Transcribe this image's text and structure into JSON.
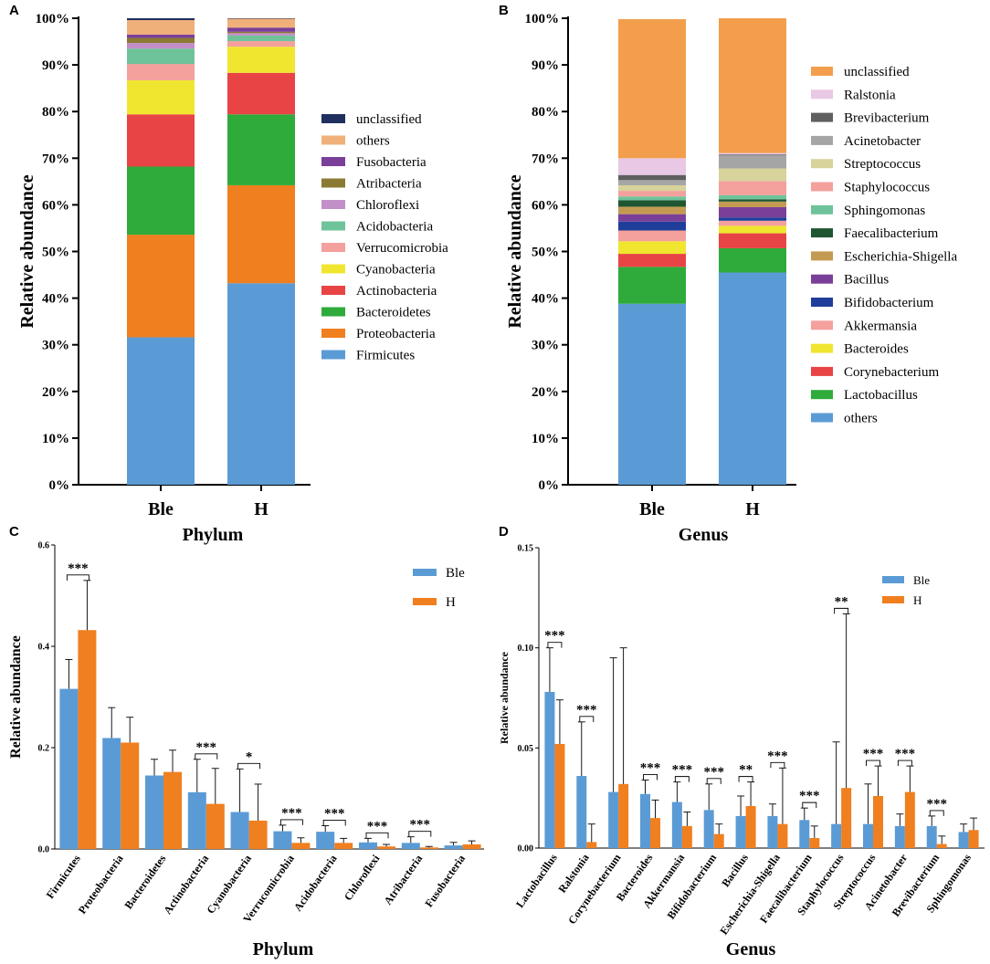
{
  "chart_data": [
    {
      "panel": "A",
      "type": "bar",
      "stacked": true,
      "title": "",
      "xlabel": "Phylum",
      "ylabel": "Relative abundance",
      "yticks": [
        "0%",
        "10%",
        "20%",
        "30%",
        "40%",
        "50%",
        "60%",
        "70%",
        "80%",
        "90%",
        "100%"
      ],
      "ylim": [
        0,
        100
      ],
      "categories": [
        "Ble",
        "H"
      ],
      "series": [
        {
          "name": "Firmicutes",
          "color": "#5b9bd5",
          "values": [
            31.6,
            43.2
          ]
        },
        {
          "name": "Proteobacteria",
          "color": "#f07f1f",
          "values": [
            22.0,
            21.0
          ]
        },
        {
          "name": "Bacteroidetes",
          "color": "#2eab3b",
          "values": [
            14.6,
            15.2
          ]
        },
        {
          "name": "Actinobacteria",
          "color": "#e84445",
          "values": [
            11.2,
            8.9
          ]
        },
        {
          "name": "Cyanobacteria",
          "color": "#f0e630",
          "values": [
            7.3,
            5.6
          ]
        },
        {
          "name": "Verrucomicrobia",
          "color": "#f4a09c",
          "values": [
            3.5,
            1.2
          ]
        },
        {
          "name": "Acidobacteria",
          "color": "#6fc39a",
          "values": [
            3.3,
            1.2
          ]
        },
        {
          "name": "Chloroflexi",
          "color": "#c38fc8",
          "values": [
            1.2,
            0.5
          ]
        },
        {
          "name": "Atribacteria",
          "color": "#8b7a34",
          "values": [
            1.1,
            0.3
          ]
        },
        {
          "name": "Fusobacteria",
          "color": "#7a3f98",
          "values": [
            0.7,
            0.9
          ]
        },
        {
          "name": "others",
          "color": "#f0b07a",
          "values": [
            3.1,
            1.9
          ]
        },
        {
          "name": "unclassified",
          "color": "#1f2f5e",
          "values": [
            0.4,
            0.1
          ]
        }
      ]
    },
    {
      "panel": "B",
      "type": "bar",
      "stacked": true,
      "title": "",
      "xlabel": "Genus",
      "ylabel": "Relative abundance",
      "yticks": [
        "0%",
        "10%",
        "20%",
        "30%",
        "40%",
        "50%",
        "60%",
        "70%",
        "80%",
        "90%",
        "100%"
      ],
      "ylim": [
        0,
        100
      ],
      "categories": [
        "Ble",
        "H"
      ],
      "series": [
        {
          "name": "others",
          "color": "#5b9bd5",
          "values": [
            38.8,
            45.5
          ]
        },
        {
          "name": "Lactobacillus",
          "color": "#2eab3b",
          "values": [
            7.9,
            5.2
          ]
        },
        {
          "name": "Corynebacterium",
          "color": "#e84445",
          "values": [
            2.8,
            3.2
          ]
        },
        {
          "name": "Bacteroides",
          "color": "#f0e630",
          "values": [
            2.7,
            1.6
          ]
        },
        {
          "name": "Akkermansia",
          "color": "#f4a09c",
          "values": [
            2.3,
            1.1
          ]
        },
        {
          "name": "Bifidobacterium",
          "color": "#1f3e9a",
          "values": [
            1.9,
            0.7
          ]
        },
        {
          "name": "Bacillus",
          "color": "#7a3f98",
          "values": [
            1.6,
            2.2
          ]
        },
        {
          "name": "Escherichia-Shigella",
          "color": "#c49a52",
          "values": [
            1.6,
            1.2
          ]
        },
        {
          "name": "Faecalibacterium",
          "color": "#1d5631",
          "values": [
            1.4,
            0.5
          ]
        },
        {
          "name": "Sphingomonas",
          "color": "#6fc39a",
          "values": [
            0.8,
            0.9
          ]
        },
        {
          "name": "Staphylococcus",
          "color": "#f4a09c",
          "values": [
            1.2,
            3.0
          ]
        },
        {
          "name": "Streptococcus",
          "color": "#d7d39a",
          "values": [
            1.2,
            2.7
          ]
        },
        {
          "name": "Acinetobacter",
          "color": "#a5a5a5",
          "values": [
            1.1,
            2.8
          ]
        },
        {
          "name": "Brevibacterium",
          "color": "#5f5f5f",
          "values": [
            1.1,
            0.2
          ]
        },
        {
          "name": "Ralstonia",
          "color": "#e8c8e4",
          "values": [
            3.6,
            0.3
          ]
        },
        {
          "name": "unclassified",
          "color": "#f29e4c",
          "values": [
            29.8,
            28.9
          ]
        }
      ]
    },
    {
      "panel": "C",
      "type": "bar",
      "title": "",
      "xlabel": "Phylum",
      "ylabel": "Relative abundance",
      "ylim": [
        0,
        0.6
      ],
      "yticks": [
        "0.0",
        "0.2",
        "0.4",
        "0.6"
      ],
      "categories": [
        "Firmicutes",
        "Proteobacteria",
        "Bacteroidetes",
        "Actinobacteria",
        "Cyanobacteria",
        "Verrucomicrobia",
        "Acidobacteria",
        "Chloroflexi",
        "Atribacteria",
        "Fusobacteria"
      ],
      "series": [
        {
          "name": "Ble",
          "color": "#5b9bd5",
          "values": [
            0.316,
            0.219,
            0.145,
            0.112,
            0.073,
            0.035,
            0.034,
            0.013,
            0.012,
            0.007
          ],
          "errors": [
            0.058,
            0.06,
            0.032,
            0.065,
            0.085,
            0.012,
            0.012,
            0.008,
            0.012,
            0.006
          ]
        },
        {
          "name": "H",
          "color": "#f07f1f",
          "values": [
            0.432,
            0.21,
            0.152,
            0.089,
            0.056,
            0.012,
            0.012,
            0.005,
            0.003,
            0.009
          ],
          "errors": [
            0.098,
            0.05,
            0.043,
            0.07,
            0.072,
            0.01,
            0.009,
            0.004,
            0.002,
            0.007
          ]
        }
      ],
      "significance": [
        "***",
        "",
        "",
        "***",
        "*",
        "***",
        "***",
        "***",
        "***",
        ""
      ]
    },
    {
      "panel": "D",
      "type": "bar",
      "title": "",
      "xlabel": "Genus",
      "ylabel": "Relative abundance",
      "ylim": [
        0,
        0.15
      ],
      "yticks": [
        "0.00",
        "0.05",
        "0.10",
        "0.15"
      ],
      "categories": [
        "Lactobacillus",
        "Ralstonia",
        "Corynebacterium",
        "Bacteroides",
        "Akkermansia",
        "Bifidobacterium",
        "Bacillus",
        "Escherichia-Shigella",
        "Faecalibacterium",
        "Staphylococcus",
        "Streptococcus",
        "Acinetobacter",
        "Brevibacterium",
        "Sphingomonas"
      ],
      "series": [
        {
          "name": "Ble",
          "color": "#5b9bd5",
          "values": [
            0.078,
            0.036,
            0.028,
            0.027,
            0.023,
            0.019,
            0.016,
            0.016,
            0.014,
            0.012,
            0.012,
            0.011,
            0.011,
            0.008
          ],
          "errors": [
            0.022,
            0.027,
            0.067,
            0.007,
            0.01,
            0.013,
            0.01,
            0.006,
            0.006,
            0.041,
            0.02,
            0.006,
            0.005,
            0.004
          ]
        },
        {
          "name": "H",
          "color": "#f07f1f",
          "values": [
            0.052,
            0.003,
            0.032,
            0.015,
            0.011,
            0.007,
            0.021,
            0.012,
            0.005,
            0.03,
            0.026,
            0.028,
            0.002,
            0.009
          ],
          "errors": [
            0.022,
            0.009,
            0.068,
            0.009,
            0.007,
            0.005,
            0.012,
            0.028,
            0.006,
            0.087,
            0.015,
            0.013,
            0.004,
            0.006
          ]
        }
      ],
      "significance": [
        "***",
        "***",
        "",
        "***",
        "***",
        "***",
        "**",
        "***",
        "***",
        "**",
        "***",
        "***",
        "***",
        ""
      ]
    }
  ]
}
